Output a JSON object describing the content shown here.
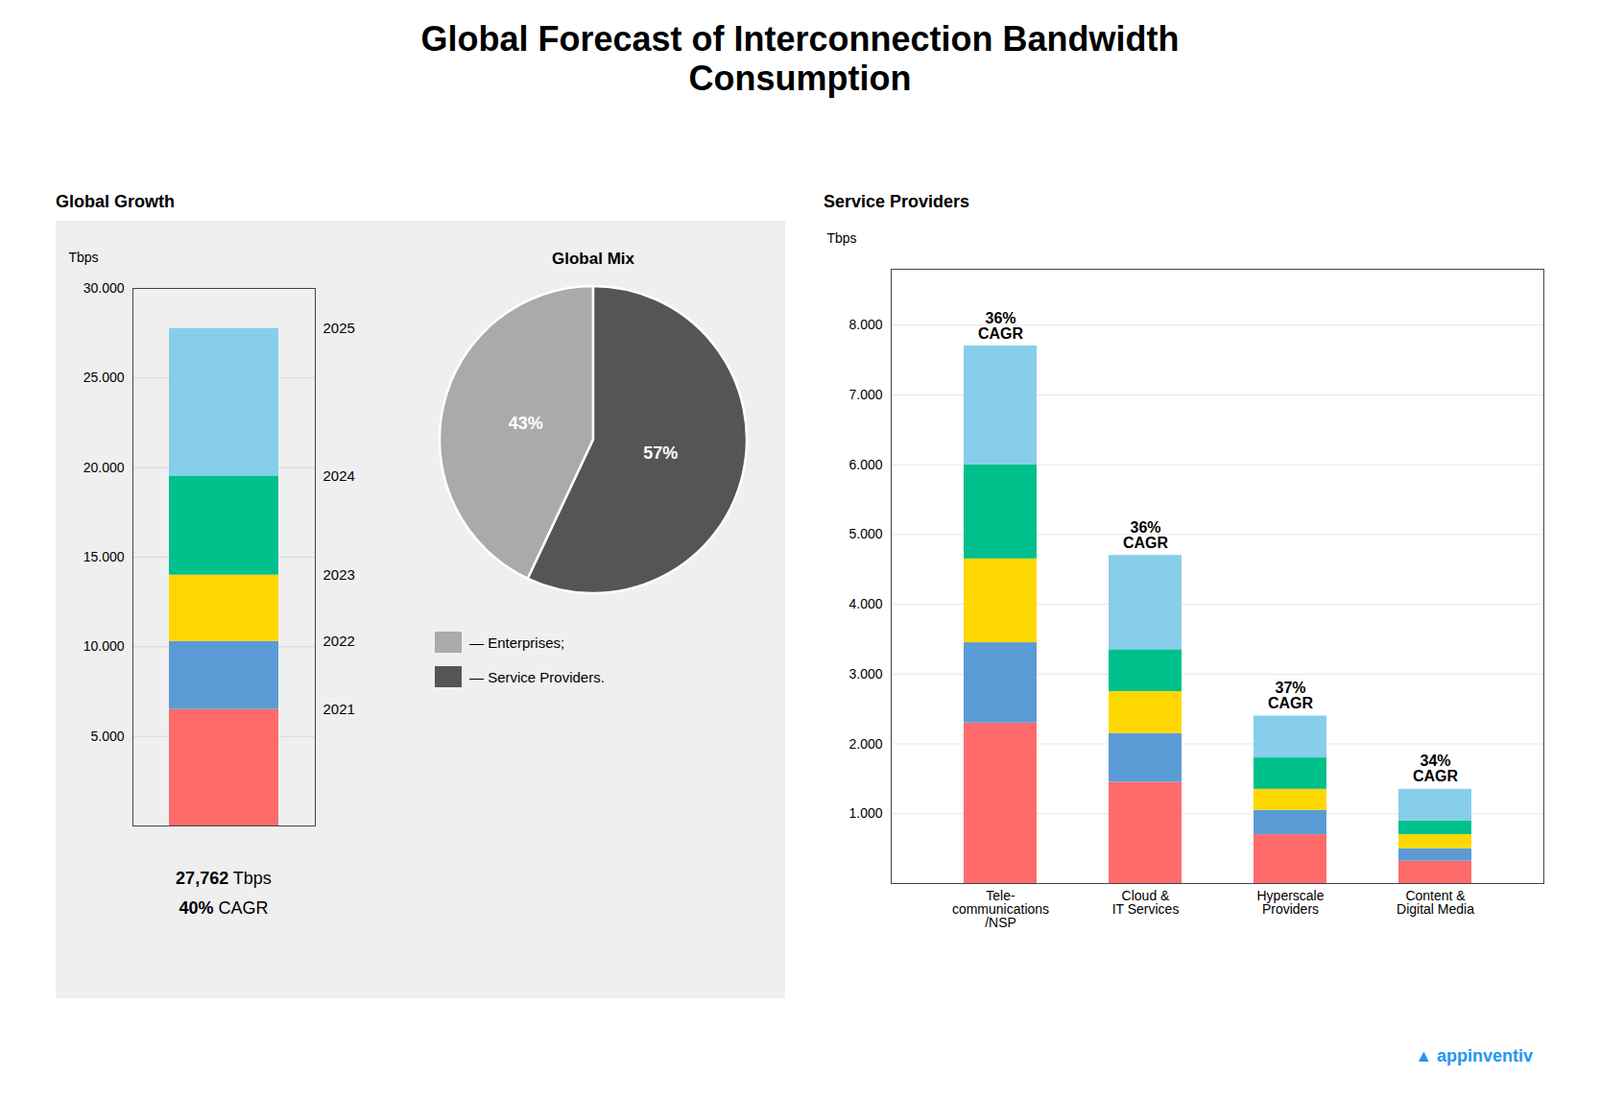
{
  "title": "Global Forecast of Interconnection Bandwidth\nConsumption",
  "annotations": [
    "▲",
    "appinventiv"
  ],
  "color": "#2196F3",
  "chart_data": [
    {
      "type": "bar",
      "title": "Global Growth",
      "stacked": true,
      "grid": true,
      "tick_labels": "y",
      "ylabel": "Tbps",
      "categories": [
        null
      ],
      "series": [
        {
          "name": "2021",
          "color": "#FF6B6B",
          "values": [
            6500
          ]
        },
        {
          "name": "2022",
          "color": "#5B9BD5",
          "values": [
            3800
          ]
        },
        {
          "name": "2023",
          "color": "#FFD700",
          "values": [
            3700
          ]
        },
        {
          "name": "2024",
          "color": "#00C08B",
          "values": [
            5500
          ]
        },
        {
          "name": "2025",
          "color": "#87CEEB",
          "values": [
            8262
          ]
        }
      ],
      "ylim": [
        0,
        30000
      ],
      "yticks": [
        {
          "value": 5000,
          "label": "5.000"
        },
        {
          "value": 10000,
          "label": "10.000"
        },
        {
          "value": 15000,
          "label": "15.000"
        },
        {
          "value": 20000,
          "label": "20.000"
        },
        {
          "value": 25000,
          "label": "25.000"
        },
        {
          "value": 30000,
          "label": "30.000"
        }
      ],
      "annotations": [
        "27,762",
        "Tbps",
        "40%",
        "CAGR"
      ]
    },
    {
      "type": "pie",
      "title": "Global Mix",
      "data_labels": true,
      "legend": "lower left",
      "categories": [
        "— Enterprises;",
        "— Service Providers."
      ],
      "values": [
        43,
        57
      ],
      "value_labels": [
        "43%",
        "57%"
      ],
      "colors": [
        "#aaaaaa",
        "#555555"
      ]
    },
    {
      "type": "bar",
      "title": "Service Providers",
      "stacked": true,
      "grid": true,
      "ylabel": "Tbps",
      "categories": [
        "Tele-\ncommunications\n/NSP",
        "Cloud &\nIT Services",
        "Hyperscale\nProviders",
        "Content &\nDigital Media"
      ],
      "series": [
        {
          "color": "#FF6B6B",
          "values": [
            2300,
            1450,
            700,
            320
          ]
        },
        {
          "color": "#5B9BD5",
          "values": [
            1150,
            700,
            350,
            180
          ]
        },
        {
          "color": "#FFD700",
          "values": [
            1200,
            600,
            300,
            200
          ]
        },
        {
          "color": "#00C08B",
          "values": [
            1350,
            600,
            450,
            200
          ]
        },
        {
          "color": "#87CEEB",
          "values": [
            1700,
            1350,
            600,
            450
          ]
        }
      ],
      "ylim": [
        0,
        8800
      ],
      "yticks": [
        {
          "value": 1000,
          "label": "1.000"
        },
        {
          "value": 2000,
          "label": "2.000"
        },
        {
          "value": 3000,
          "label": "3.000"
        },
        {
          "value": 4000,
          "label": "4.000"
        },
        {
          "value": 5000,
          "label": "5.000"
        },
        {
          "value": 6000,
          "label": "6.000"
        },
        {
          "value": 7000,
          "label": "7.000"
        },
        {
          "value": 8000,
          "label": "8.000"
        }
      ],
      "annotations": [
        "36%\nCAGR",
        "36%\nCAGR",
        "37%\nCAGR",
        "34%\nCAGR"
      ]
    }
  ]
}
